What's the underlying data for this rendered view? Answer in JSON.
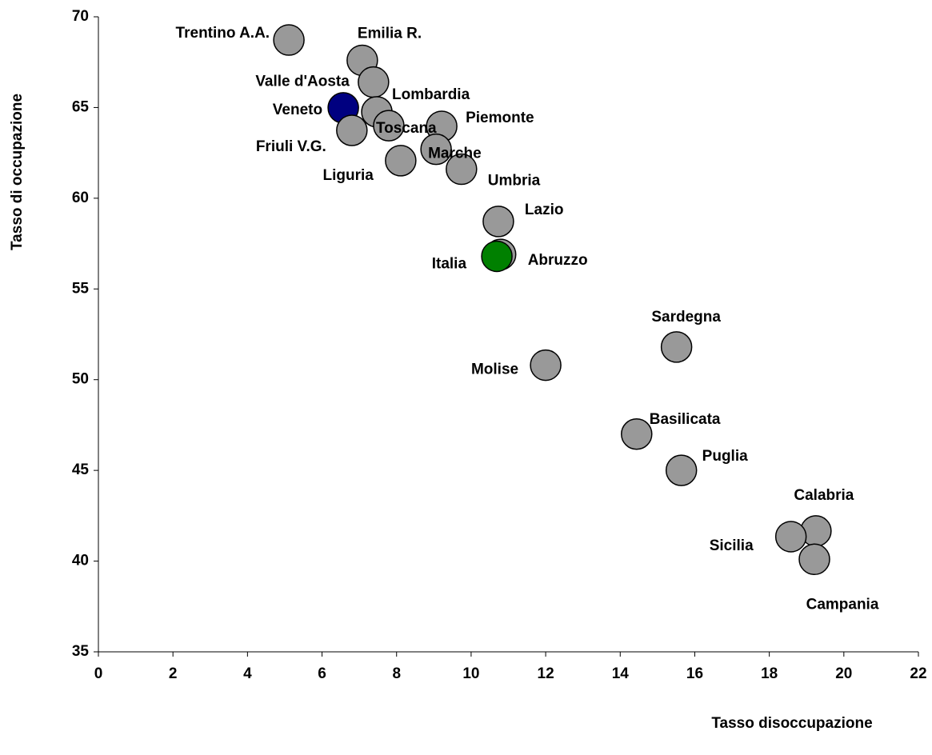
{
  "chart_data": {
    "type": "scatter",
    "xlabel": "Tasso disoccupazione",
    "ylabel": "Tasso di occupazione",
    "labels": [
      "Trentino A.A.",
      "Emilia R.",
      "Valle d'Aosta",
      "Veneto",
      "Lombardia",
      "Toscana",
      "Friuli V.G.",
      "Piemonte",
      "Marche",
      "Liguria",
      "Umbria",
      "Lazio",
      "Abruzzo",
      "Italia",
      "Molise",
      "Sardegna",
      "Basilicata",
      "Puglia",
      "Calabria",
      "Sicilia",
      "Campania"
    ],
    "x": [
      5.11,
      7.08,
      7.38,
      6.57,
      7.47,
      7.79,
      6.8,
      9.21,
      9.06,
      8.11,
      9.74,
      10.73,
      10.79,
      10.69,
      12.0,
      15.51,
      14.44,
      15.64,
      19.25,
      18.58,
      19.21
    ],
    "y": [
      68.72,
      67.6,
      66.4,
      64.98,
      64.76,
      64.0,
      63.74,
      63.96,
      62.7,
      62.07,
      61.6,
      58.72,
      56.9,
      56.8,
      50.8,
      51.8,
      47.0,
      45.0,
      41.66,
      41.35,
      40.1
    ],
    "colors": [
      "#999999",
      "#999999",
      "#999999",
      "#000080",
      "#999999",
      "#999999",
      "#999999",
      "#999999",
      "#999999",
      "#999999",
      "#999999",
      "#999999",
      "#999999",
      "#008000",
      "#999999",
      "#999999",
      "#999999",
      "#999999",
      "#999999",
      "#999999",
      "#999999"
    ],
    "xlim": [
      0,
      22
    ],
    "xticks": [
      0,
      2,
      4,
      6,
      8,
      10,
      12,
      14,
      16,
      18,
      20,
      22
    ],
    "ylim": [
      35,
      70
    ],
    "yticks": [
      35,
      40,
      45,
      50,
      55,
      60,
      65,
      70
    ]
  }
}
